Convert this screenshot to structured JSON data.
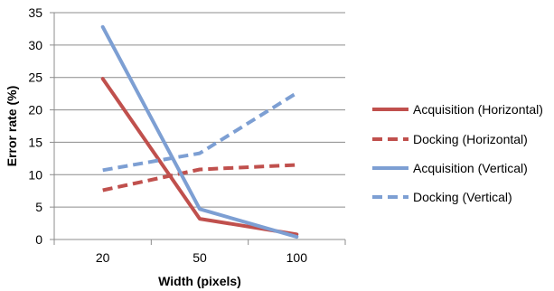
{
  "chart_data": {
    "type": "line",
    "title": "",
    "xlabel": "Width (pixels)",
    "ylabel": "Error rate (%)",
    "categories": [
      "20",
      "50",
      "100"
    ],
    "ylim": [
      0,
      35
    ],
    "yticks": [
      0,
      5,
      10,
      15,
      20,
      25,
      30,
      35
    ],
    "grid": true,
    "legend_position": "right",
    "series": [
      {
        "name": "Acquisition (Horizontal)",
        "values": [
          24.8,
          3.2,
          0.8
        ],
        "color": "#c0504d",
        "dashed": false
      },
      {
        "name": "Docking (Horizontal)",
        "values": [
          7.6,
          10.8,
          11.5
        ],
        "color": "#c0504d",
        "dashed": true
      },
      {
        "name": "Acquisition (Vertical)",
        "values": [
          32.8,
          4.7,
          0.4
        ],
        "color": "#7d9fd3",
        "dashed": false
      },
      {
        "name": "Docking (Vertical)",
        "values": [
          10.7,
          13.3,
          22.6
        ],
        "color": "#7d9fd3",
        "dashed": true
      }
    ]
  }
}
